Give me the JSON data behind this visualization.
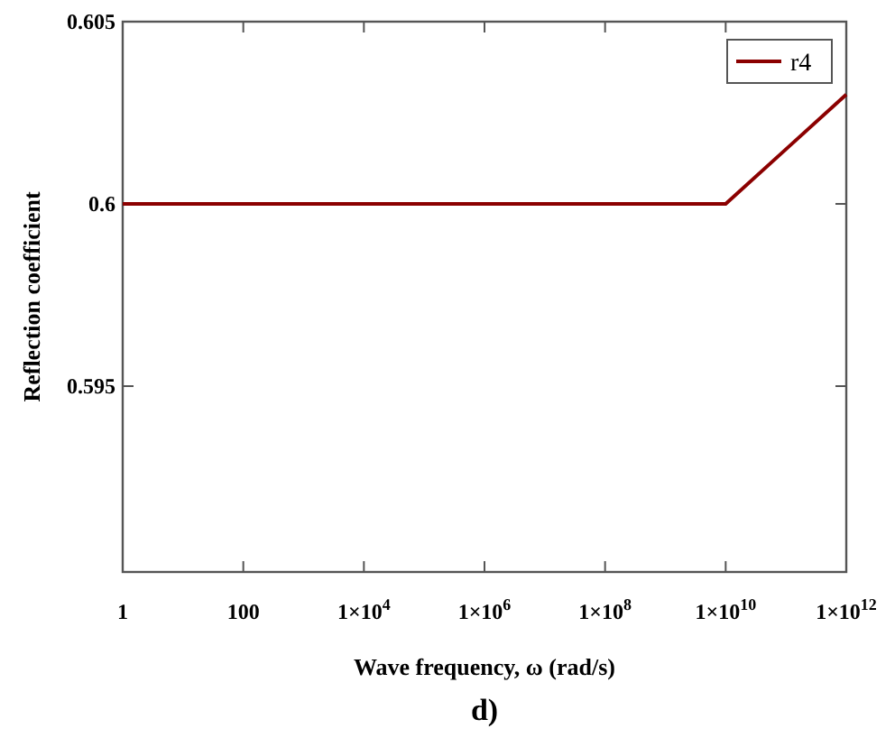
{
  "chart_data": {
    "type": "line",
    "xlabel": "Wave frequency, ω (rad/s)",
    "ylabel": "Reflection coefficient",
    "annotations": [
      "d)"
    ],
    "log": "x",
    "xlim": [
      1,
      1000000000000.0
    ],
    "ylim": [
      0.5899,
      0.605
    ],
    "xticks": [
      {
        "value": 1,
        "label": "1"
      },
      {
        "value": 100,
        "label": "100"
      },
      {
        "value": 10000,
        "label": "1×10$^{4}$"
      },
      {
        "value": 1000000,
        "label": "1×10$^{6}$"
      },
      {
        "value": 100000000,
        "label": "1×10$^{8}$"
      },
      {
        "value": 10000000000,
        "label": "1×10$^{10}$"
      },
      {
        "value": 1000000000000,
        "label": "1×10$^{12}$"
      }
    ],
    "yticks": [
      0.605,
      0.6,
      0.595
    ],
    "legend": "top right",
    "grid": false,
    "marker": "none",
    "line_style": "solid",
    "series": [
      {
        "name": "r4",
        "color": "#8b0000",
        "x": [
          1,
          10000000000,
          100000000000,
          1000000000000
        ],
        "values": [
          0.6,
          0.6,
          0.6015,
          0.603
        ]
      }
    ]
  }
}
